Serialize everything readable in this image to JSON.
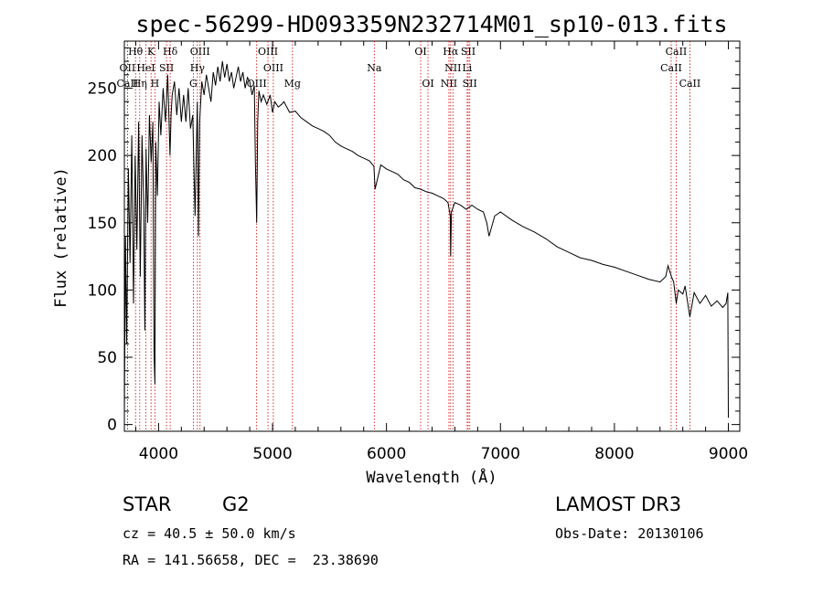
{
  "chart_data": {
    "type": "line",
    "title": "spec-56299-HD093359N232714M01_sp10-013.fits",
    "xlabel": "Wavelength (Å)",
    "ylabel": "Flux (relative)",
    "xlim": [
      3700,
      9100
    ],
    "ylim": [
      -5,
      285
    ],
    "x_ticks": [
      4000,
      5000,
      6000,
      7000,
      8000,
      9000
    ],
    "y_ticks": [
      0,
      50,
      100,
      150,
      200,
      250
    ],
    "series": [
      {
        "name": "Flux",
        "x": [
          3700,
          3710,
          3720,
          3735,
          3750,
          3765,
          3780,
          3795,
          3810,
          3825,
          3840,
          3855,
          3870,
          3880,
          3890,
          3905,
          3920,
          3935,
          3950,
          3960,
          3968,
          3975,
          3990,
          4005,
          4020,
          4040,
          4060,
          4080,
          4100,
          4110,
          4120,
          4140,
          4160,
          4180,
          4200,
          4220,
          4240,
          4260,
          4280,
          4300,
          4320,
          4340,
          4350,
          4360,
          4380,
          4400,
          4420,
          4440,
          4460,
          4480,
          4500,
          4520,
          4540,
          4560,
          4580,
          4600,
          4620,
          4640,
          4660,
          4680,
          4700,
          4720,
          4740,
          4760,
          4780,
          4800,
          4820,
          4840,
          4850,
          4861,
          4870,
          4880,
          4900,
          4920,
          4950,
          4980,
          5000,
          5020,
          5050,
          5080,
          5100,
          5150,
          5200,
          5250,
          5300,
          5350,
          5400,
          5450,
          5500,
          5550,
          5600,
          5650,
          5700,
          5750,
          5800,
          5850,
          5890,
          5900,
          5950,
          6000,
          6050,
          6100,
          6150,
          6200,
          6250,
          6300,
          6350,
          6400,
          6450,
          6500,
          6540,
          6560,
          6563,
          6570,
          6600,
          6650,
          6700,
          6750,
          6800,
          6850,
          6880,
          6900,
          6950,
          7000,
          7100,
          7200,
          7300,
          7400,
          7500,
          7600,
          7700,
          7800,
          7900,
          8000,
          8100,
          8200,
          8300,
          8400,
          8450,
          8470,
          8500,
          8520,
          8542,
          8560,
          8600,
          8620,
          8662,
          8700,
          8750,
          8800,
          8850,
          8900,
          8950,
          8980,
          8995,
          9000
        ],
        "values": [
          5,
          140,
          60,
          190,
          120,
          215,
          90,
          200,
          130,
          225,
          110,
          215,
          160,
          70,
          205,
          150,
          230,
          195,
          225,
          55,
          30,
          210,
          170,
          240,
          215,
          250,
          225,
          260,
          200,
          230,
          245,
          255,
          230,
          250,
          225,
          245,
          225,
          250,
          220,
          230,
          155,
          240,
          140,
          225,
          255,
          245,
          260,
          250,
          240,
          262,
          252,
          266,
          255,
          270,
          258,
          268,
          255,
          262,
          250,
          258,
          266,
          255,
          262,
          250,
          258,
          255,
          245,
          252,
          195,
          150,
          225,
          248,
          240,
          245,
          238,
          245,
          232,
          240,
          236,
          238,
          240,
          232,
          233,
          228,
          225,
          222,
          220,
          218,
          215,
          210,
          207,
          205,
          203,
          200,
          198,
          196,
          192,
          175,
          193,
          190,
          188,
          186,
          182,
          180,
          176,
          175,
          173,
          172,
          170,
          168,
          165,
          155,
          125,
          158,
          165,
          163,
          160,
          163,
          160,
          158,
          150,
          140,
          155,
          158,
          152,
          147,
          143,
          138,
          132,
          128,
          124,
          122,
          119,
          117,
          114,
          111,
          108,
          106,
          110,
          118,
          110,
          106,
          90,
          100,
          97,
          103,
          80,
          98,
          90,
          96,
          88,
          92,
          87,
          90,
          98,
          5
        ],
        "color": "#000000"
      }
    ],
    "lines": [
      {
        "name": "Hθ",
        "x": 3798,
        "row": 0
      },
      {
        "name": "K",
        "x": 3934,
        "row": 0
      },
      {
        "name": "Hδ",
        "x": 4102,
        "row": 0
      },
      {
        "name": "OIII",
        "x": 4364,
        "row": 0
      },
      {
        "name": "OIII",
        "x": 4960,
        "row": 0
      },
      {
        "name": "OI",
        "x": 6300,
        "row": 0
      },
      {
        "name": "Hα",
        "x": 6563,
        "row": 0
      },
      {
        "name": "SII",
        "x": 6717,
        "row": 0
      },
      {
        "name": "CaII",
        "x": 8542,
        "row": 0
      },
      {
        "name": "OII",
        "x": 3727,
        "row": 1
      },
      {
        "name": "HeI",
        "x": 3889,
        "row": 1
      },
      {
        "name": "SII",
        "x": 4070,
        "row": 1
      },
      {
        "name": "Hγ",
        "x": 4341,
        "row": 1
      },
      {
        "name": "OIII",
        "x": 5007,
        "row": 1
      },
      {
        "name": "Na",
        "x": 5893,
        "row": 1
      },
      {
        "name": "NII",
        "x": 6583,
        "row": 1
      },
      {
        "name": "Li",
        "x": 6708,
        "row": 1
      },
      {
        "name": "CaII",
        "x": 8498,
        "row": 1
      },
      {
        "name": "CaII",
        "x": 3727,
        "row": 2
      },
      {
        "name": "Hη",
        "x": 3835,
        "row": 2
      },
      {
        "name": "H",
        "x": 3968,
        "row": 2
      },
      {
        "name": "G",
        "x": 4305,
        "row": 2
      },
      {
        "name": "OIII",
        "x": 4861,
        "row": 2
      },
      {
        "name": "Mg",
        "x": 5175,
        "row": 2
      },
      {
        "name": "OI",
        "x": 6364,
        "row": 2
      },
      {
        "name": "NII",
        "x": 6548,
        "row": 2
      },
      {
        "name": "SII",
        "x": 6731,
        "row": 2
      },
      {
        "name": "CaII",
        "x": 8662,
        "row": 2
      }
    ]
  },
  "info": {
    "object_class": "STAR",
    "subclass": "G2",
    "release": "LAMOST DR3",
    "cz": "cz = 40.5 ± 50.0 km/s",
    "obs_date": "Obs-Date: 20130106",
    "radec": "RA = 141.56658, DEC =  23.38690"
  }
}
